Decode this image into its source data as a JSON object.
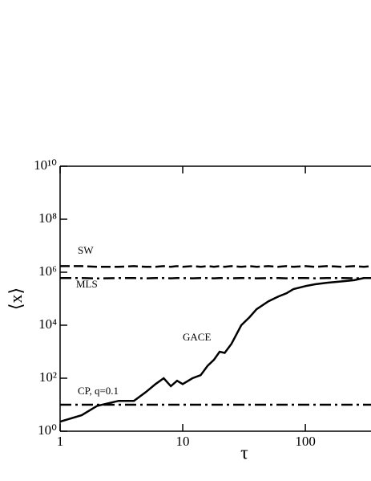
{
  "chart_data": {
    "type": "line",
    "x_label": "τ",
    "y_label": "⟨x⟩",
    "x_log": true,
    "y_log": true,
    "xlim": [
      1,
      343
    ],
    "ylim": [
      1,
      10000000000
    ],
    "xticks": [
      1,
      10,
      100
    ],
    "yticks": [
      {
        "value": 1,
        "label": "10⁰"
      },
      {
        "value": 100,
        "label": "10²"
      },
      {
        "value": 10000,
        "label": "10⁴"
      },
      {
        "value": 1000000,
        "label": "10⁶"
      },
      {
        "value": 100000000,
        "label": "10⁸"
      },
      {
        "value": 10000000000,
        "label": "10¹⁰"
      }
    ],
    "x": [
      1,
      1.5,
      2,
      3,
      4,
      5,
      6,
      7,
      8,
      9,
      10,
      12,
      14,
      16,
      18,
      20,
      22,
      25,
      30,
      35,
      40,
      50,
      60,
      70,
      80,
      100,
      120,
      150,
      200,
      250,
      300,
      343
    ],
    "series": [
      {
        "name": "SW",
        "color": "#000000",
        "line_style": "dashed",
        "values": [
          1700000,
          1700000,
          1600000,
          1600000,
          1700000,
          1600000,
          1600000,
          1700000,
          1600000,
          1700000,
          1600000,
          1700000,
          1600000,
          1700000,
          1600000,
          1700000,
          1600000,
          1700000,
          1600000,
          1700000,
          1600000,
          1700000,
          1600000,
          1700000,
          1600000,
          1700000,
          1600000,
          1700000,
          1600000,
          1700000,
          1600000,
          1700000
        ]
      },
      {
        "name": "MLS",
        "color": "#000000",
        "line_style": "dashdot",
        "values": [
          600000,
          600000,
          580000,
          600000,
          600000,
          590000,
          600000,
          600000,
          590000,
          600000,
          600000,
          590000,
          600000,
          600000,
          590000,
          600000,
          600000,
          590000,
          600000,
          600000,
          590000,
          600000,
          600000,
          590000,
          600000,
          600000,
          590000,
          600000,
          600000,
          590000,
          600000,
          600000
        ]
      },
      {
        "name": "GACE",
        "color": "#000000",
        "line_style": "solid",
        "values": [
          2.3,
          4,
          9,
          14,
          14,
          30,
          60,
          100,
          50,
          80,
          60,
          100,
          130,
          300,
          500,
          1000,
          900,
          2000,
          10000,
          20000,
          40000,
          80000,
          120000,
          160000,
          230000,
          300000,
          350000,
          400000,
          450000,
          500000,
          600000,
          600000
        ]
      },
      {
        "name": "CP, q=0.1",
        "color": "#000000",
        "line_style": "dashdot",
        "values": [
          10,
          10,
          10,
          10,
          10,
          10,
          10,
          10,
          10,
          10,
          10,
          10,
          10,
          10,
          10,
          10,
          10,
          10,
          10,
          10,
          10,
          10,
          10,
          10,
          10,
          10,
          10,
          10,
          10,
          10,
          10,
          10
        ]
      }
    ]
  }
}
